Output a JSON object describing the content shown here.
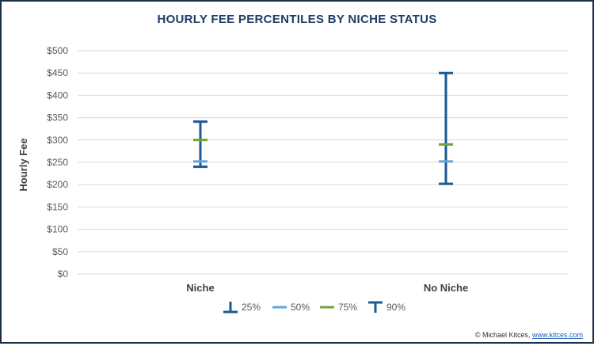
{
  "chart_data": {
    "type": "error-bar",
    "title": "HOURLY FEE PERCENTILES BY NICHE STATUS",
    "ylabel": "Hourly Fee",
    "ylim": [
      0,
      500
    ],
    "yticks": [
      0,
      50,
      100,
      150,
      200,
      250,
      300,
      350,
      400,
      450,
      500
    ],
    "ytick_labels": [
      "$0",
      "$50",
      "$100",
      "$150",
      "$200",
      "$250",
      "$300",
      "$350",
      "$400",
      "$450",
      "$500"
    ],
    "categories": [
      "Niche",
      "No Niche"
    ],
    "series": [
      {
        "name": "25%",
        "values": [
          240,
          202
        ],
        "color": "#1a5a96",
        "marker": "bottom-cap"
      },
      {
        "name": "50%",
        "values": [
          252,
          252
        ],
        "color": "#5ea6da",
        "marker": "dash"
      },
      {
        "name": "75%",
        "values": [
          300,
          290
        ],
        "color": "#6fa33b",
        "marker": "dash"
      },
      {
        "name": "90%",
        "values": [
          341,
          450
        ],
        "color": "#1a5a96",
        "marker": "top-cap"
      }
    ],
    "grid": true,
    "legend_position": "bottom"
  },
  "credit": {
    "prefix": "© Michael Kitces, ",
    "link": "www.kitces.com"
  }
}
